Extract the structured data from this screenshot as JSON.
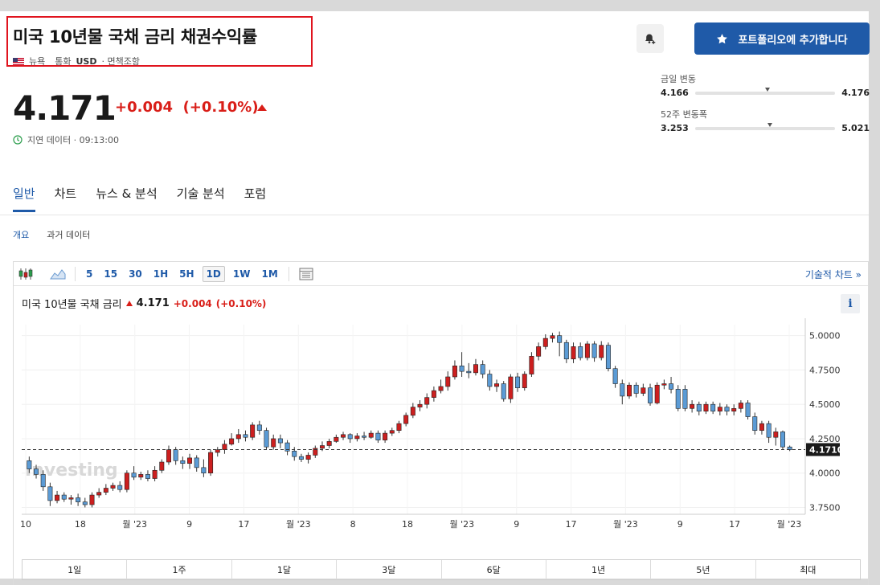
{
  "header": {
    "title": "미국 10년물 국채 금리 채권수익률",
    "exchange": "뉴욕",
    "currency_label": "통화",
    "currency": "USD",
    "disclaimer": "· 면책조항",
    "add_portfolio_label": "포트폴리오에 추가합니다"
  },
  "quote": {
    "price": "4.171",
    "change": "+0.004",
    "change_pct": "(+0.10%)",
    "delay_text": "지연 데이터 · 09:13:00"
  },
  "ranges": {
    "day": {
      "label": "금일 변동",
      "low": "4.166",
      "high": "4.176",
      "position": 0.5
    },
    "week52": {
      "label": "52주 변동폭",
      "low": "3.253",
      "high": "5.021",
      "position": 0.52
    }
  },
  "tabs": [
    "일반",
    "차트",
    "뉴스 & 분석",
    "기술 분석",
    "포럼"
  ],
  "subtabs": [
    "개요",
    "과거 데이터"
  ],
  "toolbar": {
    "intervals": [
      "5",
      "15",
      "30",
      "1H",
      "5H",
      "1D",
      "1W",
      "1M"
    ],
    "active_interval": "1D",
    "tech_chart_label": "기술적 차트 »"
  },
  "chart_header": {
    "name": "미국 10년물 국채 금리",
    "price": "4.171",
    "change": "+0.004",
    "change_pct": "(+0.10%)",
    "info": "i"
  },
  "watermark": "Investing",
  "range_buttons": [
    "1일",
    "1주",
    "1달",
    "3달",
    "6달",
    "1년",
    "5년",
    "최대"
  ],
  "chart_data": {
    "type": "candlestick",
    "y_ticks": [
      "5.0000",
      "4.7500",
      "4.5000",
      "4.2500",
      "4.0000",
      "3.7500"
    ],
    "ylim": [
      3.7,
      5.08
    ],
    "x_ticks": [
      "10",
      "18",
      "월 '23",
      "9",
      "17",
      "월 '23",
      "8",
      "18",
      "월 '23",
      "9",
      "17",
      "월 '23",
      "9",
      "17",
      "월 '23"
    ],
    "current_label": "4.1710",
    "current_value": 4.171,
    "colors": {
      "up": "#cc1f1f",
      "down": "#5b9bd5",
      "border": "#222222"
    },
    "candles": [
      [
        4.09,
        4.03,
        4.12,
        4.0
      ],
      [
        4.03,
        3.99,
        4.06,
        3.96
      ],
      [
        3.99,
        3.9,
        4.02,
        3.87
      ],
      [
        3.9,
        3.8,
        3.93,
        3.76
      ],
      [
        3.8,
        3.84,
        3.87,
        3.78
      ],
      [
        3.84,
        3.81,
        3.86,
        3.79
      ],
      [
        3.81,
        3.82,
        3.84,
        3.77
      ],
      [
        3.82,
        3.79,
        3.85,
        3.76
      ],
      [
        3.79,
        3.77,
        3.82,
        3.75
      ],
      [
        3.77,
        3.84,
        3.86,
        3.75
      ],
      [
        3.84,
        3.86,
        3.89,
        3.82
      ],
      [
        3.86,
        3.89,
        3.92,
        3.84
      ],
      [
        3.89,
        3.91,
        3.93,
        3.87
      ],
      [
        3.91,
        3.88,
        3.94,
        3.86
      ],
      [
        3.88,
        4.0,
        4.02,
        3.86
      ],
      [
        4.0,
        3.97,
        4.05,
        3.95
      ],
      [
        3.97,
        3.99,
        4.01,
        3.95
      ],
      [
        3.99,
        3.96,
        4.02,
        3.94
      ],
      [
        3.96,
        4.02,
        4.05,
        3.94
      ],
      [
        4.02,
        4.08,
        4.1,
        4.0
      ],
      [
        4.08,
        4.17,
        4.2,
        4.06
      ],
      [
        4.17,
        4.09,
        4.19,
        4.06
      ],
      [
        4.09,
        4.07,
        4.12,
        4.03
      ],
      [
        4.07,
        4.11,
        4.14,
        4.03
      ],
      [
        4.11,
        4.04,
        4.13,
        4.01
      ],
      [
        4.04,
        4.0,
        4.1,
        3.97
      ],
      [
        4.0,
        4.15,
        4.17,
        3.98
      ],
      [
        4.15,
        4.17,
        4.19,
        4.12
      ],
      [
        4.17,
        4.21,
        4.24,
        4.14
      ],
      [
        4.21,
        4.25,
        4.29,
        4.2
      ],
      [
        4.25,
        4.28,
        4.32,
        4.22
      ],
      [
        4.28,
        4.26,
        4.31,
        4.23
      ],
      [
        4.26,
        4.35,
        4.37,
        4.24
      ],
      [
        4.35,
        4.31,
        4.38,
        4.28
      ],
      [
        4.31,
        4.19,
        4.33,
        4.17
      ],
      [
        4.19,
        4.25,
        4.28,
        4.17
      ],
      [
        4.25,
        4.22,
        4.28,
        4.18
      ],
      [
        4.22,
        4.16,
        4.24,
        4.13
      ],
      [
        4.16,
        4.12,
        4.19,
        4.09
      ],
      [
        4.12,
        4.1,
        4.14,
        4.08
      ],
      [
        4.1,
        4.13,
        4.15,
        4.07
      ],
      [
        4.13,
        4.18,
        4.2,
        4.11
      ],
      [
        4.18,
        4.2,
        4.23,
        4.16
      ],
      [
        4.2,
        4.23,
        4.25,
        4.18
      ],
      [
        4.23,
        4.26,
        4.28,
        4.22
      ],
      [
        4.26,
        4.28,
        4.3,
        4.24
      ],
      [
        4.28,
        4.25,
        4.29,
        4.22
      ],
      [
        4.25,
        4.27,
        4.29,
        4.23
      ],
      [
        4.27,
        4.26,
        4.3,
        4.24
      ],
      [
        4.26,
        4.29,
        4.31,
        4.25
      ],
      [
        4.29,
        4.24,
        4.31,
        4.22
      ],
      [
        4.24,
        4.29,
        4.31,
        4.22
      ],
      [
        4.29,
        4.31,
        4.33,
        4.27
      ],
      [
        4.31,
        4.36,
        4.38,
        4.29
      ],
      [
        4.36,
        4.42,
        4.44,
        4.34
      ],
      [
        4.42,
        4.48,
        4.51,
        4.4
      ],
      [
        4.48,
        4.5,
        4.53,
        4.45
      ],
      [
        4.5,
        4.55,
        4.58,
        4.47
      ],
      [
        4.55,
        4.6,
        4.63,
        4.52
      ],
      [
        4.6,
        4.63,
        4.68,
        4.58
      ],
      [
        4.63,
        4.7,
        4.74,
        4.6
      ],
      [
        4.7,
        4.78,
        4.82,
        4.68
      ],
      [
        4.78,
        4.74,
        4.88,
        4.7
      ],
      [
        4.74,
        4.73,
        4.8,
        4.69
      ],
      [
        4.73,
        4.79,
        4.83,
        4.71
      ],
      [
        4.79,
        4.72,
        4.82,
        4.69
      ],
      [
        4.72,
        4.63,
        4.75,
        4.6
      ],
      [
        4.63,
        4.65,
        4.68,
        4.59
      ],
      [
        4.65,
        4.54,
        4.67,
        4.52
      ],
      [
        4.54,
        4.7,
        4.72,
        4.51
      ],
      [
        4.7,
        4.62,
        4.73,
        4.59
      ],
      [
        4.62,
        4.72,
        4.74,
        4.6
      ],
      [
        4.72,
        4.85,
        4.88,
        4.7
      ],
      [
        4.85,
        4.92,
        4.95,
        4.82
      ],
      [
        4.92,
        4.98,
        5.01,
        4.9
      ],
      [
        4.98,
        5.0,
        5.02,
        4.95
      ],
      [
        5.0,
        4.95,
        5.03,
        4.85
      ],
      [
        4.95,
        4.83,
        4.97,
        4.8
      ],
      [
        4.83,
        4.92,
        4.95,
        4.8
      ],
      [
        4.92,
        4.84,
        4.95,
        4.82
      ],
      [
        4.84,
        4.94,
        4.96,
        4.82
      ],
      [
        4.94,
        4.84,
        4.96,
        4.81
      ],
      [
        4.84,
        4.93,
        4.96,
        4.82
      ],
      [
        4.93,
        4.76,
        4.95,
        4.74
      ],
      [
        4.76,
        4.65,
        4.78,
        4.62
      ],
      [
        4.65,
        4.56,
        4.68,
        4.5
      ],
      [
        4.56,
        4.64,
        4.66,
        4.54
      ],
      [
        4.64,
        4.58,
        4.66,
        4.55
      ],
      [
        4.58,
        4.62,
        4.65,
        4.56
      ],
      [
        4.62,
        4.51,
        4.65,
        4.49
      ],
      [
        4.51,
        4.64,
        4.66,
        4.5
      ],
      [
        4.64,
        4.65,
        4.68,
        4.61
      ],
      [
        4.65,
        4.61,
        4.7,
        4.58
      ],
      [
        4.61,
        4.47,
        4.64,
        4.45
      ],
      [
        4.61,
        4.47,
        4.64,
        4.45
      ],
      [
        4.47,
        4.5,
        4.53,
        4.44
      ],
      [
        4.5,
        4.45,
        4.52,
        4.42
      ],
      [
        4.45,
        4.5,
        4.52,
        4.43
      ],
      [
        4.5,
        4.45,
        4.52,
        4.43
      ],
      [
        4.45,
        4.48,
        4.51,
        4.42
      ],
      [
        4.48,
        4.45,
        4.5,
        4.42
      ],
      [
        4.45,
        4.47,
        4.5,
        4.42
      ],
      [
        4.47,
        4.51,
        4.53,
        4.44
      ],
      [
        4.51,
        4.41,
        4.53,
        4.39
      ],
      [
        4.41,
        4.31,
        4.44,
        4.28
      ],
      [
        4.31,
        4.36,
        4.38,
        4.28
      ],
      [
        4.36,
        4.26,
        4.38,
        4.22
      ],
      [
        4.26,
        4.3,
        4.33,
        4.2
      ],
      [
        4.3,
        4.19,
        4.31,
        4.17
      ],
      [
        4.19,
        4.17,
        4.2,
        4.16
      ]
    ]
  }
}
